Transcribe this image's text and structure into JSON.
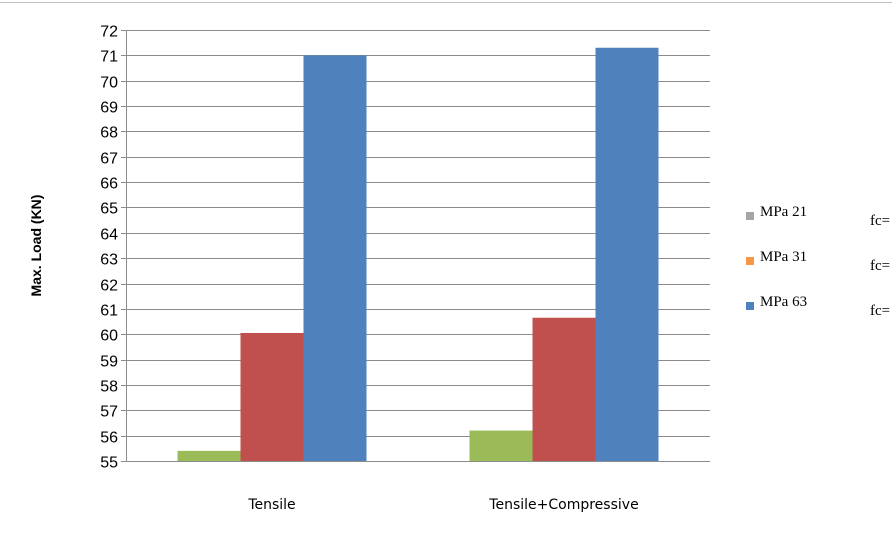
{
  "chart_data": {
    "type": "bar",
    "categories": [
      "Tensile",
      "Tensile+Compressive"
    ],
    "series": [
      {
        "name": "MPa 21 fc=",
        "color": "#9BBB59",
        "values": [
          55.4,
          56.2
        ]
      },
      {
        "name": "MPa 31 fc=",
        "color": "#C0504D",
        "values": [
          60.05,
          60.65
        ]
      },
      {
        "name": "MPa 63 fc=",
        "color": "#4F81BD",
        "values": [
          71.0,
          71.3
        ]
      }
    ],
    "ylabel": "Max. Load (KN)",
    "xlabel": "",
    "ylim": [
      55,
      72
    ],
    "yticks": [
      55,
      56,
      57,
      58,
      59,
      60,
      61,
      62,
      63,
      64,
      65,
      66,
      67,
      68,
      69,
      70,
      71,
      72
    ],
    "grid": true,
    "legend_position": "right"
  },
  "legend": [
    {
      "label": "MPa 21",
      "sub": "fc=",
      "swatch_color": "#A5A5A5"
    },
    {
      "label": "MPa 31",
      "sub": "fc=",
      "swatch_color": "#F79646"
    },
    {
      "label": "MPa 63",
      "sub": "fc=",
      "swatch_color": "#4F81BD"
    }
  ]
}
